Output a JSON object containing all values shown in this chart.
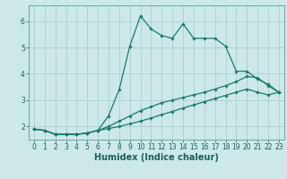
{
  "xlabel": "Humidex (Indice chaleur)",
  "background_color": "#cce8e8",
  "grid_color": "#aacfcf",
  "line_color": "#1a7a6e",
  "xlim": [
    -0.5,
    23.5
  ],
  "ylim": [
    1.5,
    6.6
  ],
  "yticks": [
    2,
    3,
    4,
    5,
    6
  ],
  "xticks": [
    0,
    1,
    2,
    3,
    4,
    5,
    6,
    7,
    8,
    9,
    10,
    11,
    12,
    13,
    14,
    15,
    16,
    17,
    18,
    19,
    20,
    21,
    22,
    23
  ],
  "curve1_x": [
    0,
    1,
    2,
    3,
    4,
    5,
    6,
    7,
    8,
    9,
    10,
    11,
    12,
    13,
    14,
    15,
    16,
    17,
    18,
    19,
    20,
    21,
    22,
    23
  ],
  "curve1_y": [
    1.9,
    1.85,
    1.7,
    1.7,
    1.7,
    1.75,
    1.85,
    2.4,
    3.4,
    5.05,
    6.2,
    5.7,
    5.45,
    5.35,
    5.9,
    5.35,
    5.35,
    5.35,
    5.05,
    4.1,
    4.1,
    3.8,
    3.6,
    3.3
  ],
  "curve2_x": [
    0,
    1,
    2,
    3,
    4,
    5,
    6,
    7,
    8,
    9,
    10,
    11,
    12,
    13,
    14,
    15,
    16,
    17,
    18,
    19,
    20,
    21,
    22,
    23
  ],
  "curve2_y": [
    1.9,
    1.85,
    1.7,
    1.7,
    1.7,
    1.75,
    1.85,
    2.0,
    2.2,
    2.4,
    2.6,
    2.75,
    2.9,
    3.0,
    3.1,
    3.2,
    3.3,
    3.42,
    3.55,
    3.7,
    3.9,
    3.85,
    3.55,
    3.3
  ],
  "curve3_x": [
    0,
    1,
    2,
    3,
    4,
    5,
    6,
    7,
    8,
    9,
    10,
    11,
    12,
    13,
    14,
    15,
    16,
    17,
    18,
    19,
    20,
    21,
    22,
    23
  ],
  "curve3_y": [
    1.9,
    1.85,
    1.7,
    1.7,
    1.7,
    1.75,
    1.85,
    1.92,
    2.0,
    2.1,
    2.2,
    2.32,
    2.45,
    2.57,
    2.7,
    2.82,
    2.94,
    3.06,
    3.18,
    3.3,
    3.42,
    3.3,
    3.2,
    3.3
  ],
  "marker": "D",
  "marker_size": 1.8,
  "line_width": 0.9,
  "xlabel_fontsize": 7,
  "tick_fontsize": 5.5
}
